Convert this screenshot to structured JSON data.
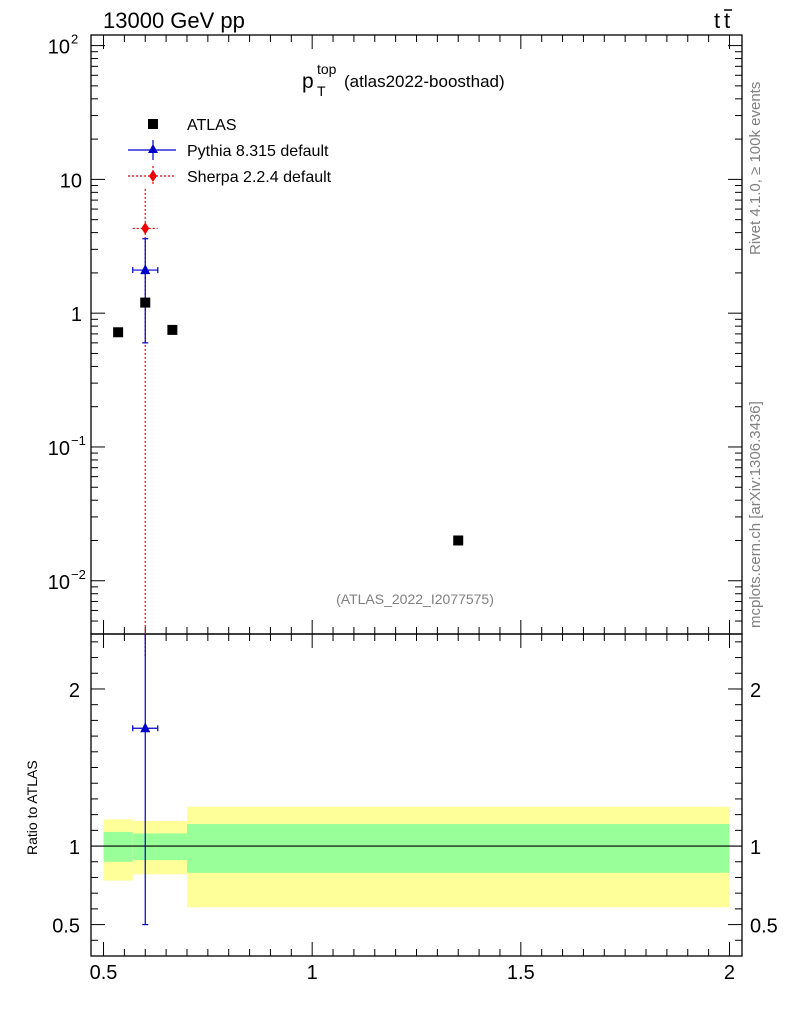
{
  "header": {
    "energy_label": "13000 GeV pp",
    "process_t": "t",
    "process_tbar": "t",
    "side_label_rivet": "Rivet 4.1.0, ≥ 100k events",
    "side_label_mcplots": "mcplots.cern.ch [arXiv:1306.3436]",
    "watermark": "(ATLAS_2022_I2077575)"
  },
  "plot_title": {
    "main": "p",
    "sub": "T",
    "sup": "top",
    "suffix": "(atlas2022-boosthad)"
  },
  "legend": {
    "atlas": "ATLAS",
    "pythia": "Pythia 8.315 default",
    "sherpa": "Sherpa 2.2.4 default"
  },
  "colors": {
    "atlas": "#000000",
    "pythia": "#0000cc",
    "sherpa": "#ee0000",
    "band_outer": "#ffff99",
    "band_inner": "#99ff99"
  },
  "chart_data": {
    "type": "scatter",
    "xlim": [
      0.47,
      2.03
    ],
    "main_panel": {
      "yscale": "log",
      "ylim": [
        0.004,
        120
      ],
      "ytick_labels": [
        {
          "base": "10",
          "exp": "2",
          "value": 100
        },
        {
          "base": "10",
          "exp": "",
          "value": 10
        },
        {
          "base": "1",
          "exp": "",
          "value": 1
        },
        {
          "base": "10",
          "exp": "−1",
          "value": 0.1
        },
        {
          "base": "10",
          "exp": "−2",
          "value": 0.01
        }
      ],
      "series": [
        {
          "name": "ATLAS",
          "points": [
            {
              "x": 0.535,
              "y": 0.72
            },
            {
              "x": 0.6,
              "y": 1.2
            },
            {
              "x": 0.665,
              "y": 0.75
            },
            {
              "x": 1.35,
              "y": 0.02
            }
          ]
        },
        {
          "name": "Pythia 8.315 default",
          "points": [
            {
              "x": 0.6,
              "y": 2.1,
              "ylo": 0.6,
              "yhi": 3.6,
              "xlo": 0.57,
              "xhi": 0.63
            }
          ]
        },
        {
          "name": "Sherpa 2.2.4 default",
          "points": [
            {
              "x": 0.6,
              "y": 4.3,
              "ylo": 0.001,
              "yhi": 8.5,
              "xlo": 0.57,
              "xhi": 0.63
            }
          ]
        }
      ]
    },
    "ratio_panel": {
      "ylabel": "Ratio to ATLAS",
      "ylim": [
        0.3,
        2.35
      ],
      "ytick_labels": [
        {
          "label": "2",
          "value": 2
        },
        {
          "label": "1",
          "value": 1
        },
        {
          "label": "0.5",
          "value": 0.5
        }
      ],
      "bands": [
        {
          "x0": 0.5,
          "x1": 0.57,
          "outer": [
            0.78,
            1.17
          ],
          "inner": [
            0.9,
            1.09
          ]
        },
        {
          "x0": 0.57,
          "x1": 0.7,
          "outer": [
            0.82,
            1.16
          ],
          "inner": [
            0.91,
            1.08
          ]
        },
        {
          "x0": 0.7,
          "x1": 2.0,
          "outer": [
            0.61,
            1.25
          ],
          "inner": [
            0.83,
            1.14
          ]
        }
      ],
      "series": [
        {
          "name": "Pythia 8.315 default",
          "points": [
            {
              "x": 0.6,
              "y": 1.75,
              "ylo": 0.5,
              "yhi": 2.35,
              "xlo": 0.57,
              "xhi": 0.63
            }
          ]
        }
      ]
    },
    "xtick_labels": [
      {
        "label": "0.5",
        "value": 0.5
      },
      {
        "label": "1",
        "value": 1
      },
      {
        "label": "1.5",
        "value": 1.5
      },
      {
        "label": "2",
        "value": 2
      }
    ]
  }
}
